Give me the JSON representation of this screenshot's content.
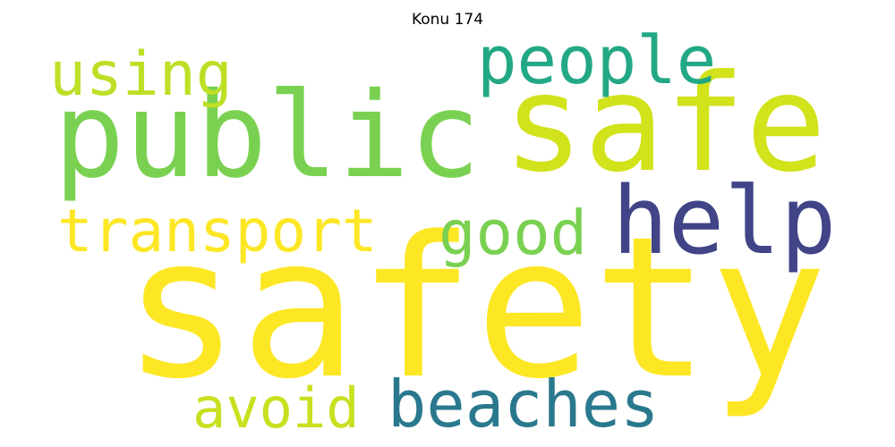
{
  "title": "Konu 174",
  "words": [
    {
      "text": "safety",
      "color": "#fde725"
    },
    {
      "text": "public",
      "color": "#7ad151"
    },
    {
      "text": "safe",
      "color": "#d2e21b"
    },
    {
      "text": "help",
      "color": "#414487"
    },
    {
      "text": "people",
      "color": "#22a884"
    },
    {
      "text": "using",
      "color": "#bddf26"
    },
    {
      "text": "transport",
      "color": "#fde725"
    },
    {
      "text": "good",
      "color": "#7ad151"
    },
    {
      "text": "beaches",
      "color": "#2a788e"
    },
    {
      "text": "avoid",
      "color": "#c8e020"
    }
  ]
}
